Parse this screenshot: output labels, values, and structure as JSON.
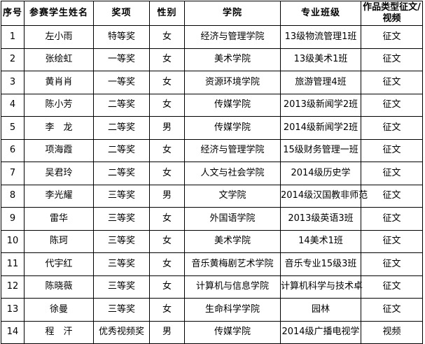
{
  "colors": {
    "border": "#000000",
    "background": "#ffffff",
    "text": "#000000"
  },
  "table": {
    "headers": [
      "序号",
      "参赛学生姓名",
      "奖项",
      "性别",
      "学院",
      "专业班级",
      "作品类型征文/视频"
    ],
    "rows": [
      [
        "1",
        "左小雨",
        "特等奖",
        "女",
        "经济与管理学院",
        "13级物流管理1班",
        "征文"
      ],
      [
        "2",
        "张绘虹",
        "一等奖",
        "女",
        "美术学院",
        "13级美术1班",
        "征文"
      ],
      [
        "3",
        "黄肖肖",
        "一等奖",
        "女",
        "资源环境学院",
        "旅游管理4班",
        "征文"
      ],
      [
        "4",
        "陈小芳",
        "二等奖",
        "女",
        "传媒学院",
        "2013级新闻学2班",
        "征文"
      ],
      [
        "5",
        "李　龙",
        "二等奖",
        "男",
        "传媒学院",
        "2014级新闻学2班",
        "征文"
      ],
      [
        "6",
        "项海霞",
        "二等奖",
        "女",
        "经济与管理学院",
        "15级财务管理一班",
        "征文"
      ],
      [
        "7",
        "吴君玲",
        "二等奖",
        "女",
        "人文与社会学院",
        "2014级历史学",
        "征文"
      ],
      [
        "8",
        "李光耀",
        "三等奖",
        "男",
        "文学院",
        "2014级汉国教非师范",
        "征文"
      ],
      [
        "9",
        "雷华",
        "三等奖",
        "女",
        "外国语学院",
        "2013级英语3班",
        "征文"
      ],
      [
        "10",
        "陈珂",
        "三等奖",
        "女",
        "美术学院",
        "14美术1班",
        "征文"
      ],
      [
        "11",
        "代宇红",
        "三等奖",
        "女",
        "音乐黄梅剧艺术学院",
        "音乐专业15级3班",
        "征文"
      ],
      [
        "12",
        "陈晓薇",
        "三等奖",
        "女",
        "计算机与信息学院",
        "计算机科学与技术卓",
        "征文"
      ],
      [
        "13",
        "徐曼",
        "三等奖",
        "女",
        "生命科学学院",
        "园林",
        "征文"
      ],
      [
        "14",
        "程　汗",
        "优秀视频奖",
        "男",
        "传媒学院",
        "2014级广播电视学",
        "视频"
      ]
    ]
  }
}
